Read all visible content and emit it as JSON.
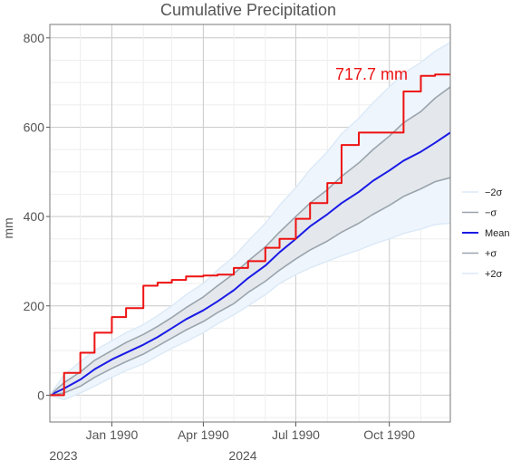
{
  "chart_data": {
    "type": "line",
    "title": "Cumulative Precipitation",
    "xlabel": "",
    "ylabel": "mm",
    "ylim": [
      -60,
      830
    ],
    "y_ticks": [
      0,
      200,
      400,
      600,
      800
    ],
    "x_ticks": [
      "Jan 1990",
      "Apr 1990",
      "Jul 1990",
      "Oct 1990"
    ],
    "x_tick_dates": [
      "1990-01-01",
      "1990-04-01",
      "1990-07-01",
      "1990-10-01"
    ],
    "x_range_dates": [
      "1989-11-01",
      "1990-11-30"
    ],
    "year_labels": [
      "2023",
      "2024"
    ],
    "grid": true,
    "legend_position": "right",
    "annotation": "717.7 mm",
    "colors": {
      "minus2sigma": "#dbe9f7",
      "minus1sigma": "#9aa4ad",
      "mean": "#1a1ae6",
      "plus1sigma": "#9aa4ad",
      "plus2sigma": "#dbe9f7",
      "observed": "#ee1111",
      "band_inner": "#e4e8ec",
      "band_outer": "#eef5fc"
    },
    "x": [
      "1989-11-01",
      "1989-11-15",
      "1989-12-01",
      "1989-12-15",
      "1990-01-01",
      "1990-01-15",
      "1990-02-01",
      "1990-02-15",
      "1990-03-01",
      "1990-03-15",
      "1990-04-01",
      "1990-04-15",
      "1990-05-01",
      "1990-05-15",
      "1990-06-01",
      "1990-06-15",
      "1990-07-01",
      "1990-07-15",
      "1990-08-01",
      "1990-08-15",
      "1990-09-01",
      "1990-09-15",
      "1990-10-01",
      "1990-10-15",
      "1990-11-01",
      "1990-11-15",
      "1990-11-30"
    ],
    "series": [
      {
        "name": "−2σ",
        "values": [
          0,
          -10,
          5,
          20,
          40,
          55,
          70,
          88,
          105,
          120,
          140,
          160,
          180,
          200,
          225,
          250,
          270,
          285,
          300,
          312,
          325,
          338,
          350,
          362,
          372,
          382,
          385
        ]
      },
      {
        "name": "−σ",
        "values": [
          0,
          5,
          20,
          40,
          60,
          75,
          92,
          110,
          128,
          146,
          165,
          185,
          205,
          230,
          255,
          280,
          305,
          325,
          345,
          365,
          385,
          405,
          425,
          445,
          462,
          478,
          487
        ]
      },
      {
        "name": "Mean",
        "values": [
          0,
          15,
          35,
          58,
          80,
          95,
          113,
          130,
          150,
          170,
          190,
          210,
          235,
          262,
          290,
          320,
          350,
          378,
          405,
          430,
          455,
          480,
          503,
          525,
          545,
          565,
          588
        ]
      },
      {
        "name": "+σ",
        "values": [
          0,
          28,
          52,
          78,
          100,
          118,
          136,
          154,
          174,
          196,
          220,
          245,
          272,
          300,
          332,
          365,
          400,
          430,
          460,
          490,
          520,
          550,
          580,
          610,
          635,
          665,
          690
        ]
      },
      {
        "name": "+2σ",
        "values": [
          0,
          45,
          75,
          100,
          122,
          140,
          158,
          178,
          200,
          225,
          250,
          280,
          310,
          345,
          385,
          425,
          465,
          505,
          545,
          585,
          620,
          655,
          690,
          720,
          745,
          770,
          790
        ]
      },
      {
        "name": "",
        "values": [
          0,
          50,
          95,
          140,
          175,
          195,
          245,
          252,
          258,
          266,
          268,
          270,
          285,
          300,
          330,
          350,
          395,
          430,
          475,
          560,
          588,
          588,
          588,
          680,
          715,
          718,
          718
        ]
      }
    ]
  },
  "legend": [
    {
      "label": "−2σ",
      "key": "minus2sigma"
    },
    {
      "label": "−σ",
      "key": "minus1sigma"
    },
    {
      "label": "Mean",
      "key": "mean"
    },
    {
      "label": "+σ",
      "key": "plus1sigma"
    },
    {
      "label": "+2σ",
      "key": "plus2sigma"
    }
  ]
}
